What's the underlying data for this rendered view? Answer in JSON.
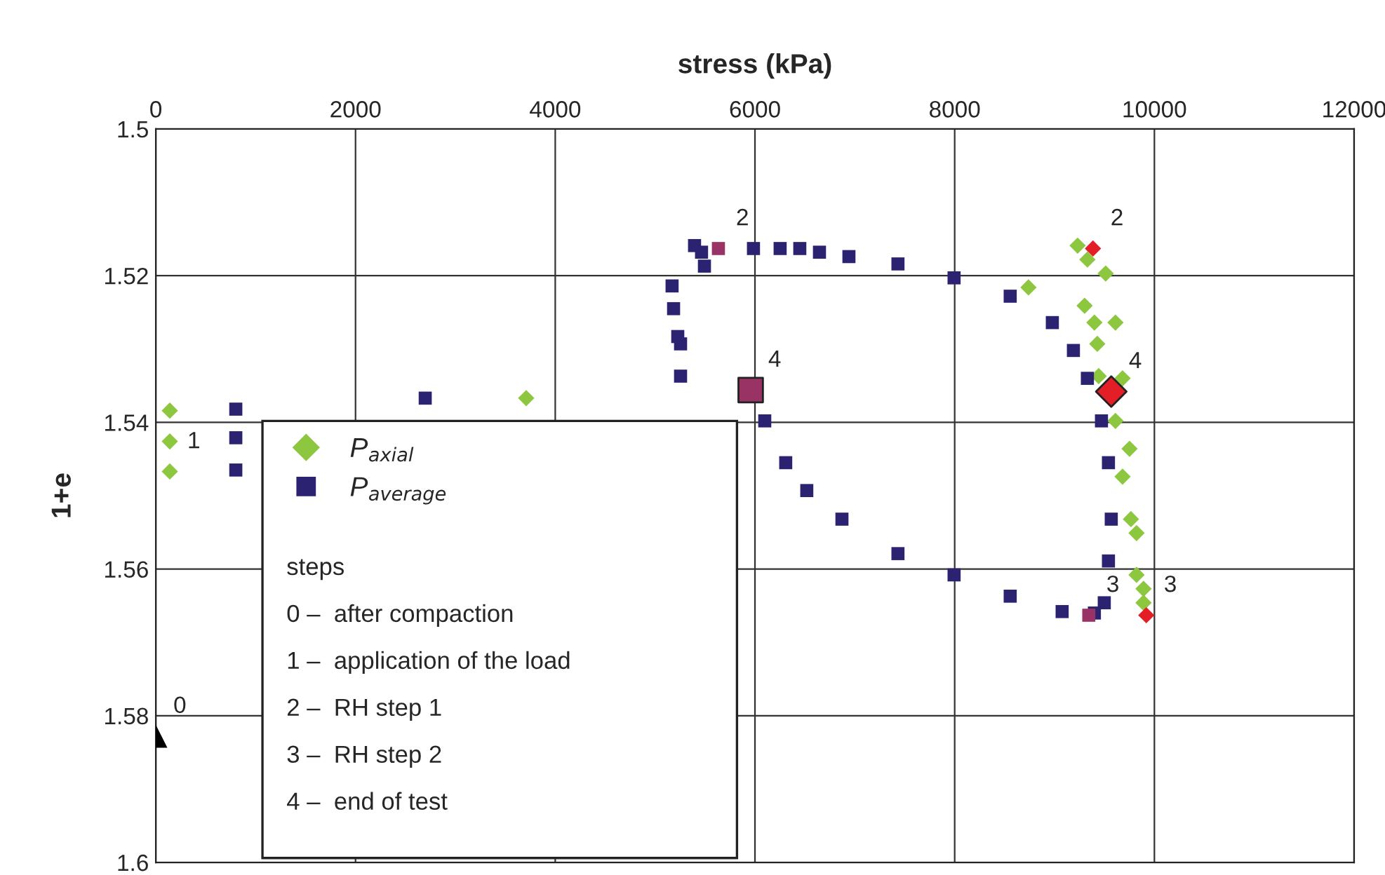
{
  "chart_data": {
    "type": "scatter",
    "xlabel": "stress (kPa)",
    "ylabel": "1+e",
    "xlim": [
      0,
      12000
    ],
    "xticks": [
      0,
      2000,
      4000,
      6000,
      8000,
      10000,
      12000
    ],
    "ylim": [
      1.6,
      1.5
    ],
    "yticks": [
      1.5,
      1.52,
      1.54,
      1.56,
      1.58,
      1.6
    ],
    "grid": true,
    "legend": "left",
    "series": [
      {
        "name": "P$_{axial}$",
        "color": "#8dc63f",
        "marker": "diamond",
        "x": [
          140,
          140,
          140,
          3709,
          8739,
          9231,
          9329,
          9512,
          9610,
          9681,
          9751,
          9821,
          9891,
          9891,
          9821,
          9765,
          9681,
          9610,
          9301,
          9399,
          9428,
          9442
        ],
        "values": [
          1.5384,
          1.5426,
          1.5467,
          1.5367,
          1.5216,
          1.5159,
          1.5178,
          1.5197,
          1.5264,
          1.534,
          1.5436,
          1.5551,
          1.5627,
          1.5646,
          1.5608,
          1.5532,
          1.5474,
          1.5398,
          1.5241,
          1.5264,
          1.5293,
          1.5337
        ]
      },
      {
        "name": "P$_{average}$",
        "color": "#2b2272",
        "marker": "square",
        "x": [
          801,
          801,
          801,
          2698,
          5255,
          5255,
          5227,
          5185,
          5170,
          5395,
          5465,
          5494,
          5985,
          6252,
          6449,
          6646,
          6941,
          7432,
          7994,
          8556,
          8978,
          9189,
          9329,
          9470,
          9540,
          9568,
          9540,
          9498,
          9399,
          9076,
          8556,
          7994,
          7432,
          6871,
          6519,
          6308,
          6098
        ],
        "values": [
          1.5382,
          1.5421,
          1.5465,
          1.5367,
          1.5337,
          1.5293,
          1.5283,
          1.5245,
          1.5214,
          1.5159,
          1.5168,
          1.5187,
          1.5163,
          1.5163,
          1.5163,
          1.5168,
          1.5174,
          1.5184,
          1.5203,
          1.5228,
          1.5264,
          1.5302,
          1.534,
          1.5398,
          1.5455,
          1.5532,
          1.5589,
          1.5646,
          1.566,
          1.5658,
          1.5637,
          1.5608,
          1.5579,
          1.5532,
          1.5493,
          1.5455,
          1.5398
        ]
      },
      {
        "color": "#e41e26",
        "marker": "diamond",
        "x": [
          9385,
          9919
        ],
        "values": [
          1.5163,
          1.5663
        ]
      },
      {
        "color": "#e41e26",
        "marker": "diamond",
        "x": [
          9568
        ],
        "values": [
          1.5358
        ]
      },
      {
        "color": "#993366",
        "marker": "square",
        "x": [
          5634,
          9343
        ],
        "values": [
          1.5163,
          1.5663
        ]
      },
      {
        "color": "#993366",
        "marker": "square",
        "x": [
          5957
        ],
        "values": [
          1.5356
        ]
      },
      {
        "color": "#000000",
        "marker": "triangle",
        "x": [
          0
        ],
        "values": [
          1.5828
        ]
      }
    ],
    "annotations": [
      {
        "text": "0",
        "x": 0,
        "y": 1.5828
      },
      {
        "text": "1",
        "x": 140,
        "y": 1.5467
      },
      {
        "text": "2",
        "x": 5634,
        "y": 1.5163
      },
      {
        "text": "2",
        "x": 9385,
        "y": 1.5163
      },
      {
        "text": "3",
        "x": 9343,
        "y": 1.5663
      },
      {
        "text": "3",
        "x": 9919,
        "y": 1.5663
      },
      {
        "text": "4",
        "x": 5957,
        "y": 1.5356
      },
      {
        "text": "4",
        "x": 9568,
        "y": 1.5358
      },
      "steps",
      "0 –  after compaction",
      "1 –  application of the load",
      "2 –  RH step 1",
      "3 –  RH step 2",
      "4 –  end of test"
    ]
  }
}
